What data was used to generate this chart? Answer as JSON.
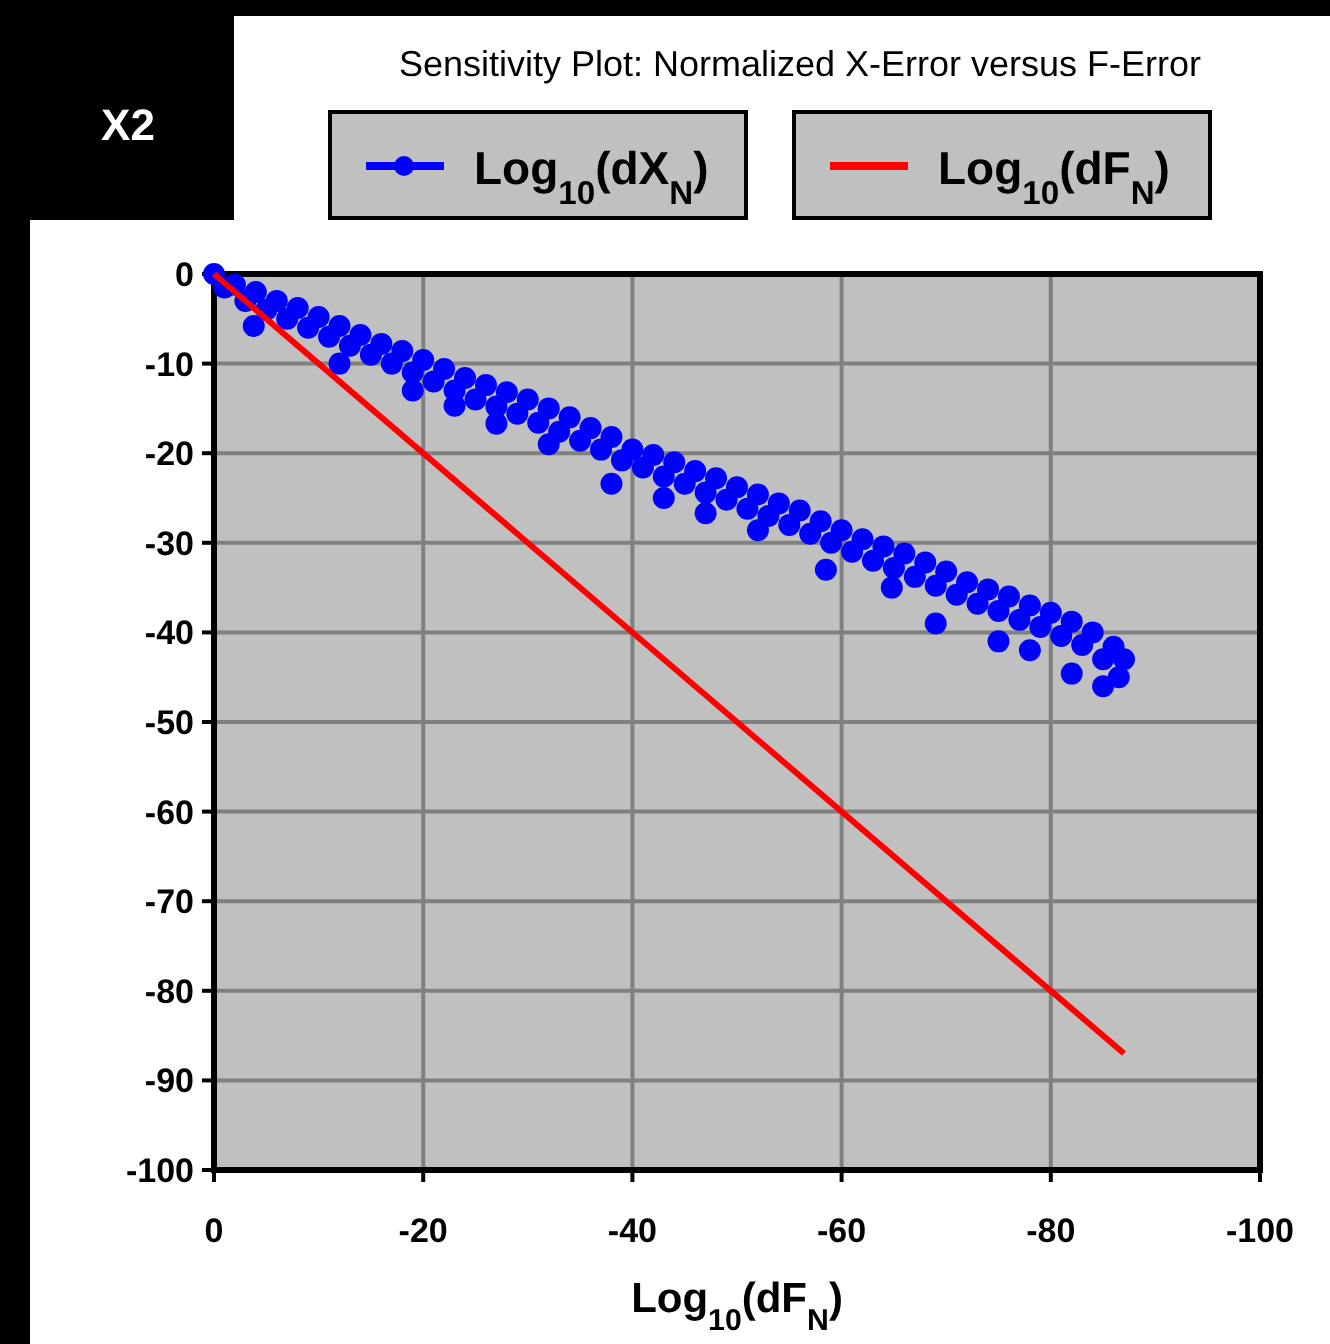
{
  "chart_data": {
    "type": "scatter",
    "title": "Sensitivity Plot: Normalized X-Error versus F-Error",
    "xlabel": "Log$_{10}$(dF$_{N}$)",
    "annotations": [
      "X2"
    ],
    "xlim": [
      0,
      -100
    ],
    "xticks": [
      0,
      -20,
      -40,
      -60,
      -80,
      -100
    ],
    "ylim": [
      -100,
      0
    ],
    "yticks": [
      0,
      -10,
      -20,
      -30,
      -40,
      -50,
      -60,
      -70,
      -80,
      -90,
      -100
    ],
    "grid": true,
    "legend": "top",
    "series": [
      {
        "name": "Log$_{10}$(dX$_{N}$)",
        "type": "scatter",
        "marker": "circle",
        "color": "#0000ff",
        "x": [
          0,
          -2,
          -4,
          -6,
          -8,
          -10,
          -12,
          -14,
          -16,
          -18,
          -20,
          -22,
          -24,
          -26,
          -28,
          -30,
          -32,
          -34,
          -36,
          -38,
          -40,
          -42,
          -44,
          -46,
          -48,
          -50,
          -52,
          -54,
          -56,
          -58,
          -60,
          -62,
          -64,
          -66,
          -68,
          -70,
          -72,
          -74,
          -76,
          -78,
          -80,
          -82,
          -84,
          -86,
          -87,
          -1,
          -3,
          -5,
          -7,
          -9,
          -11,
          -13,
          -15,
          -17,
          -19,
          -21,
          -23,
          -25,
          -27,
          -29,
          -31,
          -33,
          -35,
          -37,
          -39,
          -41,
          -43,
          -45,
          -47,
          -49,
          -51,
          -53,
          -55,
          -57,
          -59,
          -61,
          -63,
          -65,
          -67,
          -69,
          -71,
          -73,
          -75,
          -77,
          -79,
          -81,
          -83,
          -85,
          -86.5,
          -3.8,
          -12,
          -19,
          -23,
          -27,
          -32,
          -38,
          -43,
          -47,
          -52,
          -58.5,
          -64.8,
          -69,
          -75,
          -78,
          -82,
          -85
        ],
        "values": [
          0,
          -1.2,
          -2,
          -3,
          -3.8,
          -4.8,
          -5.8,
          -6.8,
          -7.8,
          -8.6,
          -9.6,
          -10.6,
          -11.6,
          -12.4,
          -13.2,
          -14,
          -15,
          -16,
          -17.2,
          -18.2,
          -19.6,
          -20.2,
          -21,
          -22,
          -22.8,
          -23.8,
          -24.6,
          -25.6,
          -26.4,
          -27.6,
          -28.6,
          -29.6,
          -30.4,
          -31.2,
          -32.2,
          -33.2,
          -34.4,
          -35.2,
          -36,
          -37,
          -37.8,
          -38.8,
          -40,
          -41.6,
          -43,
          -1.5,
          -3,
          -4,
          -5,
          -6,
          -7,
          -8,
          -9,
          -10,
          -11,
          -12,
          -13,
          -14,
          -14.8,
          -15.6,
          -16.6,
          -17.6,
          -18.6,
          -19.6,
          -20.8,
          -21.6,
          -22.6,
          -23.4,
          -24.4,
          -25.2,
          -26.2,
          -27,
          -28,
          -29,
          -30,
          -31,
          -32,
          -32.8,
          -33.8,
          -34.8,
          -35.8,
          -36.8,
          -37.6,
          -38.6,
          -39.4,
          -40.4,
          -41.4,
          -43,
          -45,
          -5.8,
          -10,
          -13,
          -14.7,
          -16.7,
          -19,
          -23.4,
          -25,
          -26.7,
          -28.6,
          -33,
          -35,
          -39,
          -41,
          -42,
          -44.6,
          -46
        ]
      },
      {
        "name": "Log$_{10}$(dF$_{N}$)",
        "type": "line",
        "marker": "none",
        "line_style": "solid",
        "color": "#ff0000",
        "x": [
          0,
          -87
        ],
        "values": [
          0,
          -87
        ]
      }
    ]
  }
}
